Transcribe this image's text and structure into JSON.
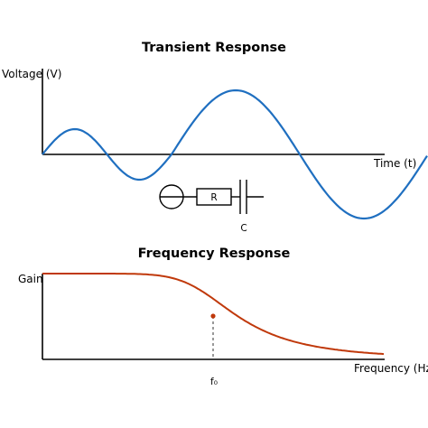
{
  "transient": {
    "title": "Transient Response",
    "ylabel": "Voltage (V)",
    "xlabel": "Time (t)",
    "curve_color": "#1f6fc0",
    "circuit": {
      "source_symbol": "voltage-source",
      "resistor_label": "R",
      "capacitor_label": "C"
    }
  },
  "frequency": {
    "title": "Frequency Response",
    "ylabel": "Gain",
    "xlabel": "Frequency (Hz)",
    "cutoff_label": "f₀",
    "curve_color": "#c0390b"
  },
  "colors": {
    "axis": "#000000",
    "background": "#ffffff"
  }
}
